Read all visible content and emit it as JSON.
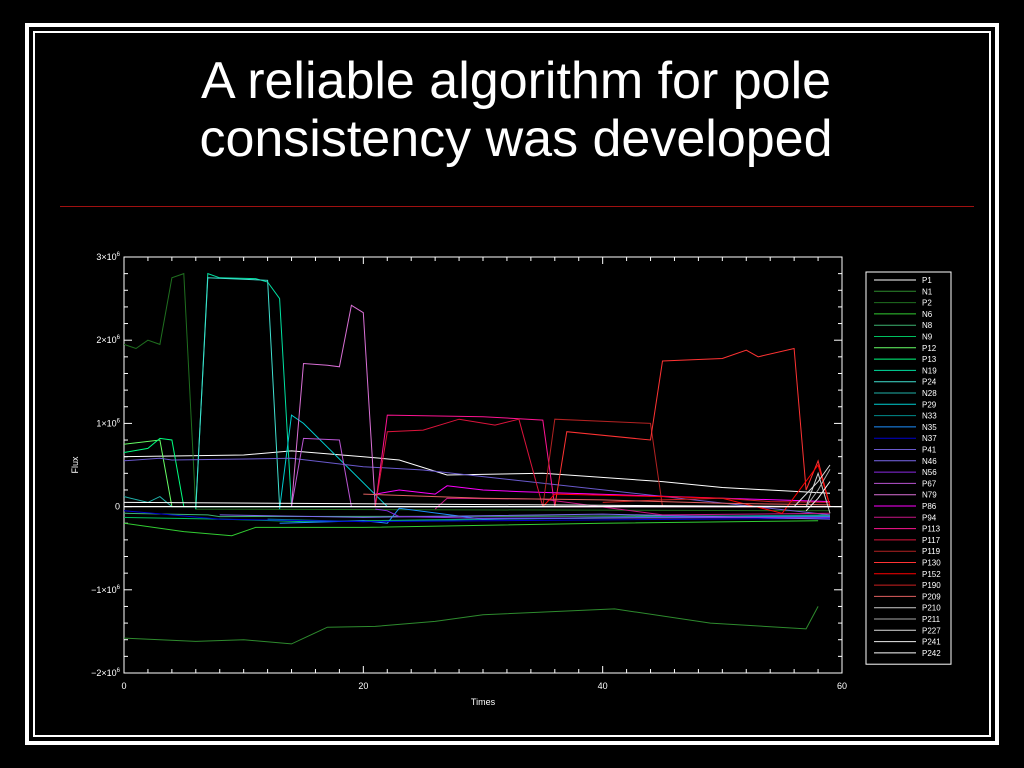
{
  "slide": {
    "title_line1": "A reliable algorithm for pole",
    "title_line2": "consistency was developed",
    "rule_color": "#a01010"
  },
  "chart_data": {
    "type": "line",
    "title": "",
    "xlabel": "Times",
    "ylabel": "Flux",
    "xlim": [
      0,
      60
    ],
    "ylim": [
      -2000000,
      3000000
    ],
    "x_ticks": [
      0,
      20,
      40,
      60
    ],
    "x_tick_labels": [
      "0",
      "20",
      "40",
      "60"
    ],
    "y_ticks": [
      -2000000,
      -1000000,
      0,
      1000000,
      2000000,
      3000000
    ],
    "y_tick_labels": [
      {
        "mant": "−2×10",
        "exp": "6"
      },
      {
        "mant": "−1×10",
        "exp": "6"
      },
      {
        "mant": "0",
        "exp": ""
      },
      {
        "mant": "1×10",
        "exp": "6"
      },
      {
        "mant": "2×10",
        "exp": "6"
      },
      {
        "mant": "3×10",
        "exp": "6"
      }
    ],
    "legend_position": "right",
    "zero_line": true,
    "series": [
      {
        "name": "P1",
        "color": "#ffffff",
        "points": [
          [
            0,
            600000
          ],
          [
            10,
            620000
          ],
          [
            14,
            670000
          ],
          [
            20,
            600000
          ],
          [
            23,
            560000
          ],
          [
            27,
            380000
          ],
          [
            35,
            400000
          ],
          [
            45,
            300000
          ],
          [
            50,
            230000
          ],
          [
            59,
            160000
          ]
        ]
      },
      {
        "name": "N1",
        "color": "#2e8b2e",
        "points": [
          [
            0,
            -1580000
          ],
          [
            6,
            -1620000
          ],
          [
            10,
            -1600000
          ],
          [
            14,
            -1650000
          ],
          [
            17,
            -1450000
          ],
          [
            21,
            -1440000
          ],
          [
            26,
            -1380000
          ],
          [
            30,
            -1300000
          ],
          [
            41,
            -1230000
          ],
          [
            49,
            -1400000
          ],
          [
            57,
            -1470000
          ],
          [
            58,
            -1200000
          ]
        ]
      },
      {
        "name": "P2",
        "color": "#1f6f1f",
        "points": [
          [
            0,
            1950000
          ],
          [
            1,
            1900000
          ],
          [
            2,
            2000000
          ],
          [
            3,
            1950000
          ],
          [
            4,
            2750000
          ],
          [
            5,
            2800000
          ],
          [
            6,
            -30000
          ],
          [
            59,
            -50000
          ]
        ]
      },
      {
        "name": "N6",
        "color": "#32cd32",
        "points": [
          [
            0,
            -200000
          ],
          [
            5,
            -300000
          ],
          [
            9,
            -350000
          ],
          [
            11,
            -250000
          ],
          [
            20,
            -250000
          ],
          [
            40,
            -200000
          ],
          [
            58,
            -170000
          ]
        ]
      },
      {
        "name": "N8",
        "color": "#3cb371",
        "points": [
          [
            0,
            -80000
          ],
          [
            7,
            -100000
          ],
          [
            8,
            -120000
          ],
          [
            59,
            -110000
          ]
        ]
      },
      {
        "name": "N9",
        "color": "#00c060",
        "points": [
          [
            0,
            -130000
          ],
          [
            8,
            -150000
          ],
          [
            15,
            -180000
          ],
          [
            30,
            -150000
          ],
          [
            59,
            -120000
          ]
        ]
      },
      {
        "name": "P12",
        "color": "#66ff66",
        "points": [
          [
            0,
            750000
          ],
          [
            3,
            800000
          ],
          [
            4,
            0
          ],
          [
            59,
            0
          ]
        ]
      },
      {
        "name": "P13",
        "color": "#00ff7f",
        "points": [
          [
            0,
            650000
          ],
          [
            2,
            700000
          ],
          [
            3,
            820000
          ],
          [
            4,
            800000
          ],
          [
            5,
            0
          ],
          [
            59,
            0
          ]
        ]
      },
      {
        "name": "N19",
        "color": "#00e0a0",
        "points": [
          [
            6,
            -30000
          ],
          [
            7,
            2800000
          ],
          [
            8,
            2750000
          ],
          [
            11,
            2740000
          ],
          [
            12,
            2700000
          ],
          [
            13,
            2500000
          ],
          [
            14,
            0
          ],
          [
            59,
            0
          ]
        ]
      },
      {
        "name": "P24",
        "color": "#40e0d0",
        "points": [
          [
            6,
            0
          ],
          [
            7,
            2750000
          ],
          [
            12,
            2720000
          ],
          [
            13,
            0
          ],
          [
            59,
            0
          ]
        ]
      },
      {
        "name": "N28",
        "color": "#20b2aa",
        "points": [
          [
            0,
            120000
          ],
          [
            2,
            50000
          ],
          [
            3,
            120000
          ],
          [
            4,
            0
          ],
          [
            59,
            0
          ]
        ]
      },
      {
        "name": "P29",
        "color": "#00ced1",
        "points": [
          [
            13,
            -30000
          ],
          [
            14,
            1100000
          ],
          [
            15,
            1000000
          ],
          [
            22,
            0
          ],
          [
            59,
            0
          ]
        ]
      },
      {
        "name": "N33",
        "color": "#008b8b",
        "points": [
          [
            12,
            -150000
          ],
          [
            20,
            -180000
          ],
          [
            40,
            -130000
          ],
          [
            59,
            -100000
          ]
        ]
      },
      {
        "name": "N35",
        "color": "#1e90ff",
        "points": [
          [
            13,
            -200000
          ],
          [
            20,
            -170000
          ],
          [
            22,
            -200000
          ],
          [
            23,
            -20000
          ],
          [
            30,
            -150000
          ],
          [
            45,
            -130000
          ],
          [
            59,
            -120000
          ]
        ]
      },
      {
        "name": "N37",
        "color": "#0000cd",
        "points": [
          [
            0,
            -50000
          ],
          [
            8,
            -150000
          ],
          [
            20,
            -180000
          ],
          [
            40,
            -160000
          ],
          [
            59,
            -140000
          ]
        ]
      },
      {
        "name": "P41",
        "color": "#6a5acd",
        "points": [
          [
            0,
            550000
          ],
          [
            3,
            580000
          ],
          [
            4,
            560000
          ],
          [
            14,
            580000
          ],
          [
            20,
            480000
          ],
          [
            25,
            440000
          ],
          [
            59,
            -100000
          ]
        ]
      },
      {
        "name": "N46",
        "color": "#7b68ee",
        "points": [
          [
            8,
            -100000
          ],
          [
            20,
            -130000
          ],
          [
            40,
            -90000
          ],
          [
            59,
            -150000
          ]
        ]
      },
      {
        "name": "N56",
        "color": "#8a2be2",
        "points": [
          [
            21,
            -30000
          ],
          [
            22,
            -50000
          ],
          [
            23,
            -120000
          ],
          [
            30,
            -140000
          ],
          [
            59,
            -130000
          ]
        ]
      },
      {
        "name": "P67",
        "color": "#ba55d3",
        "points": [
          [
            14,
            0
          ],
          [
            15,
            820000
          ],
          [
            18,
            800000
          ],
          [
            19,
            0
          ],
          [
            59,
            0
          ]
        ]
      },
      {
        "name": "N79",
        "color": "#da70d6",
        "points": [
          [
            14,
            0
          ],
          [
            15,
            1720000
          ],
          [
            17,
            1700000
          ],
          [
            18,
            1680000
          ],
          [
            19,
            2420000
          ],
          [
            20,
            2330000
          ],
          [
            21,
            0
          ],
          [
            59,
            0
          ]
        ]
      },
      {
        "name": "P86",
        "color": "#ff00ff",
        "points": [
          [
            21,
            150000
          ],
          [
            23,
            200000
          ],
          [
            26,
            150000
          ],
          [
            27,
            250000
          ],
          [
            30,
            200000
          ],
          [
            33,
            180000
          ],
          [
            59,
            60000
          ]
        ]
      },
      {
        "name": "P94",
        "color": "#c71585",
        "points": [
          [
            26,
            -30000
          ],
          [
            27,
            100000
          ],
          [
            35,
            90000
          ],
          [
            45,
            -100000
          ],
          [
            59,
            -80000
          ]
        ]
      },
      {
        "name": "P113",
        "color": "#ff1493",
        "points": [
          [
            21,
            0
          ],
          [
            22,
            1100000
          ],
          [
            30,
            1080000
          ],
          [
            35,
            1040000
          ],
          [
            36,
            0
          ],
          [
            59,
            0
          ]
        ]
      },
      {
        "name": "P117",
        "color": "#dc143c",
        "points": [
          [
            21,
            0
          ],
          [
            22,
            900000
          ],
          [
            25,
            920000
          ],
          [
            28,
            1050000
          ],
          [
            31,
            980000
          ],
          [
            33,
            1050000
          ],
          [
            35,
            0
          ],
          [
            59,
            0
          ]
        ]
      },
      {
        "name": "P119",
        "color": "#b22222",
        "points": [
          [
            35,
            0
          ],
          [
            36,
            1050000
          ],
          [
            44,
            1000000
          ],
          [
            45,
            0
          ],
          [
            59,
            0
          ]
        ]
      },
      {
        "name": "P130",
        "color": "#ff3333",
        "points": [
          [
            36,
            0
          ],
          [
            37,
            900000
          ],
          [
            44,
            800000
          ],
          [
            45,
            1750000
          ],
          [
            50,
            1780000
          ],
          [
            52,
            1880000
          ],
          [
            53,
            1800000
          ],
          [
            56,
            1900000
          ],
          [
            57,
            200000
          ],
          [
            58,
            550000
          ],
          [
            59,
            0
          ]
        ]
      },
      {
        "name": "P152",
        "color": "#ff0000",
        "points": [
          [
            35,
            0
          ],
          [
            36,
            150000
          ],
          [
            45,
            120000
          ],
          [
            50,
            100000
          ],
          [
            55,
            -80000
          ],
          [
            58,
            500000
          ],
          [
            59,
            0
          ]
        ]
      },
      {
        "name": "P190",
        "color": "#cc2020",
        "points": [
          [
            40,
            50000
          ],
          [
            45,
            80000
          ],
          [
            50,
            100000
          ],
          [
            54,
            60000
          ],
          [
            59,
            50000
          ]
        ]
      },
      {
        "name": "P209",
        "color": "#e06060",
        "points": [
          [
            20,
            150000
          ],
          [
            30,
            100000
          ],
          [
            40,
            80000
          ],
          [
            50,
            40000
          ],
          [
            59,
            20000
          ]
        ]
      },
      {
        "name": "P210",
        "color": "#cccccc",
        "points": [
          [
            57,
            0
          ],
          [
            58,
            400000
          ],
          [
            59,
            -80000
          ]
        ]
      },
      {
        "name": "P211",
        "color": "#aaaaaa",
        "points": [
          [
            57,
            0
          ],
          [
            58,
            200000
          ],
          [
            59,
            450000
          ]
        ]
      },
      {
        "name": "P227",
        "color": "#dddddd",
        "points": [
          [
            56,
            0
          ],
          [
            57,
            150000
          ],
          [
            58,
            300000
          ],
          [
            59,
            500000
          ]
        ]
      },
      {
        "name": "P241",
        "color": "#eeeeee",
        "points": [
          [
            57,
            -50000
          ],
          [
            58,
            100000
          ],
          [
            59,
            300000
          ]
        ]
      },
      {
        "name": "P242",
        "color": "#ffffff",
        "points": [
          [
            0,
            50000
          ],
          [
            59,
            0
          ]
        ]
      }
    ]
  }
}
